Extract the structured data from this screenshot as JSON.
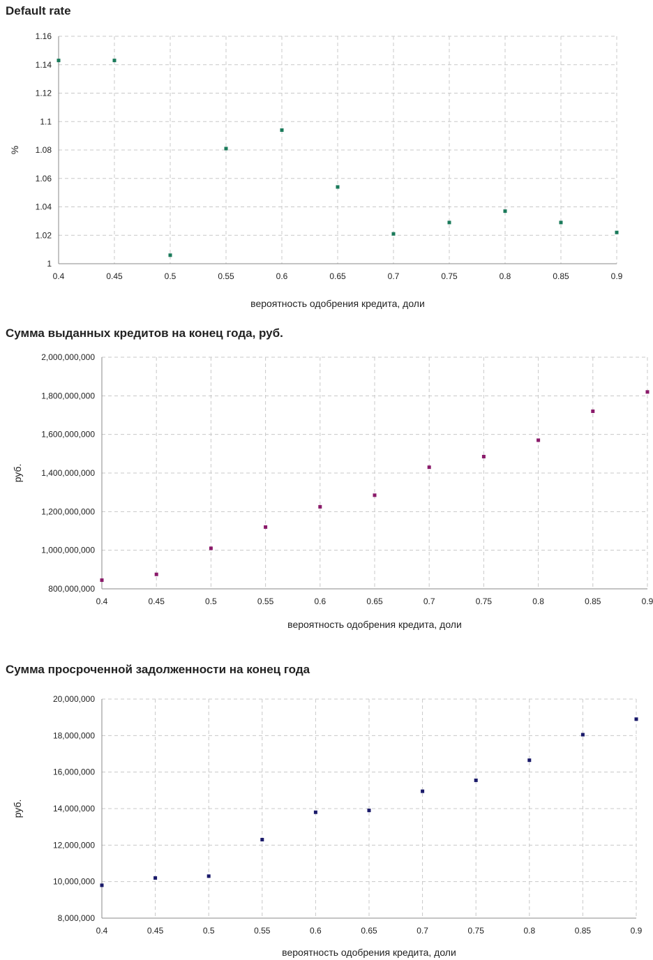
{
  "chart_data": [
    {
      "type": "scatter",
      "title": "Default rate",
      "xlabel": "вероятность одобрения кредита,  доли",
      "ylabel": "%",
      "xlim": [
        0.4,
        0.9
      ],
      "ylim": [
        1,
        1.16
      ],
      "x_ticks": [
        "0.4",
        "0.45",
        "0.5",
        "0.55",
        "0.6",
        "0.65",
        "0.7",
        "0.75",
        "0.8",
        "0.85",
        "0.9"
      ],
      "y_ticks": [
        "1",
        "1.02",
        "1.04",
        "1.06",
        "1.08",
        "1.1",
        "1.12",
        "1.14",
        "1.16"
      ],
      "grid": true,
      "color": "#1a7a5a",
      "series": [
        {
          "x": [
            0.4,
            0.45,
            0.5,
            0.55,
            0.6,
            0.65,
            0.7,
            0.75,
            0.8,
            0.85,
            0.9
          ],
          "y": [
            1.143,
            1.143,
            1.006,
            1.081,
            1.094,
            1.054,
            1.021,
            1.029,
            1.037,
            1.029,
            1.022
          ]
        }
      ]
    },
    {
      "type": "scatter",
      "title": "Сумма выданных кредитов на конец года, руб.",
      "xlabel": "вероятность одобрения кредита,  доли",
      "ylabel": "руб.",
      "xlim": [
        0.4,
        0.9
      ],
      "ylim": [
        800000000,
        2000000000
      ],
      "x_ticks": [
        "0.4",
        "0.45",
        "0.5",
        "0.55",
        "0.6",
        "0.65",
        "0.7",
        "0.75",
        "0.8",
        "0.85",
        "0.9"
      ],
      "y_ticks": [
        "800,000,000",
        "1,000,000,000",
        "1,200,000,000",
        "1,400,000,000",
        "1,600,000,000",
        "1,800,000,000",
        "2,000,000,000"
      ],
      "grid": true,
      "color": "#8a1a6a",
      "series": [
        {
          "x": [
            0.4,
            0.45,
            0.5,
            0.55,
            0.6,
            0.65,
            0.7,
            0.75,
            0.8,
            0.85,
            0.9
          ],
          "y": [
            845000000,
            875000000,
            1010000000,
            1120000000,
            1225000000,
            1285000000,
            1430000000,
            1485000000,
            1570000000,
            1720000000,
            1820000000
          ]
        }
      ]
    },
    {
      "type": "scatter",
      "title": "Сумма просроченной задолженности на конец года",
      "xlabel": "вероятность одобрения кредита,  доли",
      "ylabel": "руб.",
      "xlim": [
        0.4,
        0.9
      ],
      "ylim": [
        8000000,
        20000000
      ],
      "x_ticks": [
        "0.4",
        "0.45",
        "0.5",
        "0.55",
        "0.6",
        "0.65",
        "0.7",
        "0.75",
        "0.8",
        "0.85",
        "0.9"
      ],
      "y_ticks": [
        "8,000,000",
        "10,000,000",
        "12,000,000",
        "14,000,000",
        "16,000,000",
        "18,000,000",
        "20,000,000"
      ],
      "grid": true,
      "color": "#1a1a6a",
      "series": [
        {
          "x": [
            0.4,
            0.45,
            0.5,
            0.55,
            0.6,
            0.65,
            0.7,
            0.75,
            0.8,
            0.85,
            0.9
          ],
          "y": [
            9800000,
            10200000,
            10300000,
            12300000,
            13800000,
            13900000,
            14950000,
            15550000,
            16650000,
            18050000,
            18900000
          ]
        }
      ]
    }
  ]
}
